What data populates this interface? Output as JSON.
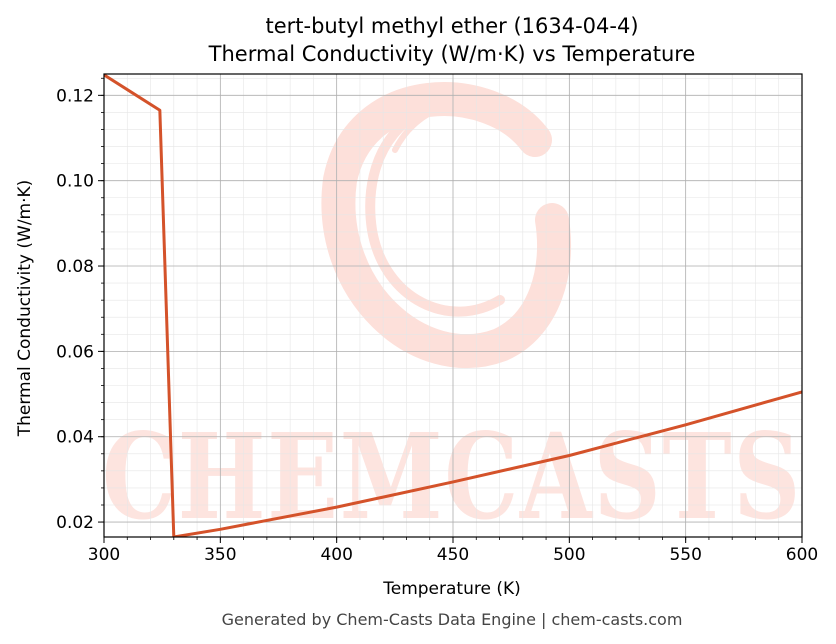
{
  "chart_data": {
    "type": "line",
    "title": "tert-butyl methyl ether (1634-04-4)",
    "subtitle": "Thermal Conductivity (W/m·K) vs Temperature",
    "xlabel": "Temperature (K)",
    "ylabel": "Thermal Conductivity (W/m·K)",
    "xlim": [
      300,
      600
    ],
    "ylim": [
      0.0165,
      0.125
    ],
    "xticks": [
      300,
      350,
      400,
      450,
      500,
      550,
      600
    ],
    "yticks": [
      0.02,
      0.04,
      0.06,
      0.08,
      0.1,
      0.12
    ],
    "ytick_labels": [
      "0.02",
      "0.04",
      "0.06",
      "0.08",
      "0.10",
      "0.12"
    ],
    "grid": true,
    "series": [
      {
        "color": "#d4522a",
        "x": [
          300,
          324,
          330,
          350,
          400,
          450,
          500,
          550,
          600
        ],
        "y": [
          0.1248,
          0.1165,
          0.0165,
          0.0183,
          0.0235,
          0.0294,
          0.0356,
          0.0428,
          0.0505
        ]
      }
    ]
  },
  "watermark": {
    "text": "CHEMCASTS",
    "color": "#fde4df"
  },
  "footer": "Generated by Chem-Casts Data Engine | chem-casts.com"
}
